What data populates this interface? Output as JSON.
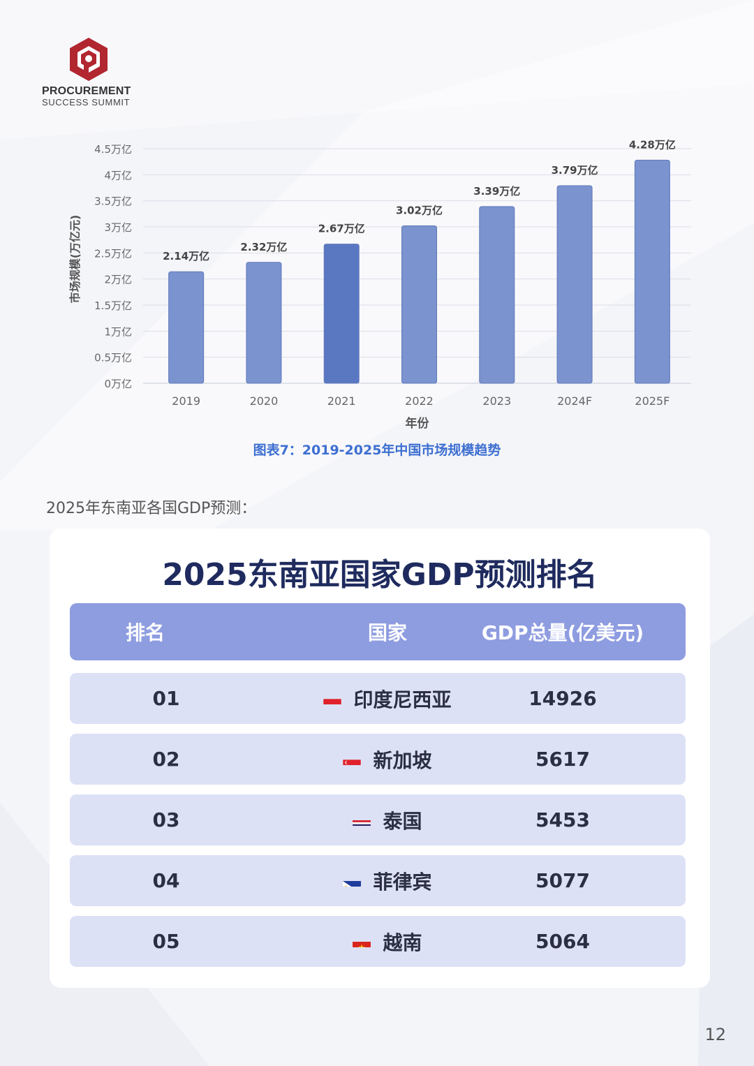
{
  "brand": {
    "line1": "PROCUREMENT",
    "line2": "SUCCESS  SUMMIT",
    "color": "#b1262f"
  },
  "chart_data": {
    "type": "bar",
    "title": "图表7：2019-2025年中国市场规模趋势",
    "xlabel": "年份",
    "ylabel": "市场规模(万亿元)",
    "categories": [
      "2019",
      "2020",
      "2021",
      "2022",
      "2023",
      "2024F",
      "2025F"
    ],
    "values": [
      2.14,
      2.32,
      2.67,
      3.02,
      3.39,
      3.79,
      4.28
    ],
    "value_labels": [
      "2.14万亿",
      "2.32万亿",
      "2.67万亿",
      "3.02万亿",
      "3.39万亿",
      "3.79万亿",
      "4.28万亿"
    ],
    "ylim": [
      0,
      4.5
    ],
    "yticks": [
      0,
      0.5,
      1,
      1.5,
      2,
      2.5,
      3,
      3.5,
      4,
      4.5
    ],
    "ytick_labels": [
      "0万亿",
      "0.5万亿",
      "1万亿",
      "1.5万亿",
      "2万亿",
      "2.5万亿",
      "3万亿",
      "3.5万亿",
      "4万亿",
      "4.5万亿"
    ],
    "grid": true,
    "bar_color": "#7b93cf",
    "highlight_color": "#5a78c2"
  },
  "intro": "2025年东南亚各国GDP预测：",
  "table": {
    "title": "2025东南亚国家GDP预测排名",
    "headers": {
      "rank": "排名",
      "country": "国家",
      "gdp": "GDP总量(亿美元)"
    },
    "rows": [
      {
        "rank": "01",
        "country": "印度尼西亚",
        "gdp": "14926",
        "flag": "indonesia"
      },
      {
        "rank": "02",
        "country": "新加坡",
        "gdp": "5617",
        "flag": "singapore"
      },
      {
        "rank": "03",
        "country": "泰国",
        "gdp": "5453",
        "flag": "thailand"
      },
      {
        "rank": "04",
        "country": "菲律宾",
        "gdp": "5077",
        "flag": "philippines"
      },
      {
        "rank": "05",
        "country": "越南",
        "gdp": "5064",
        "flag": "vietnam"
      }
    ]
  },
  "page_number": "12"
}
